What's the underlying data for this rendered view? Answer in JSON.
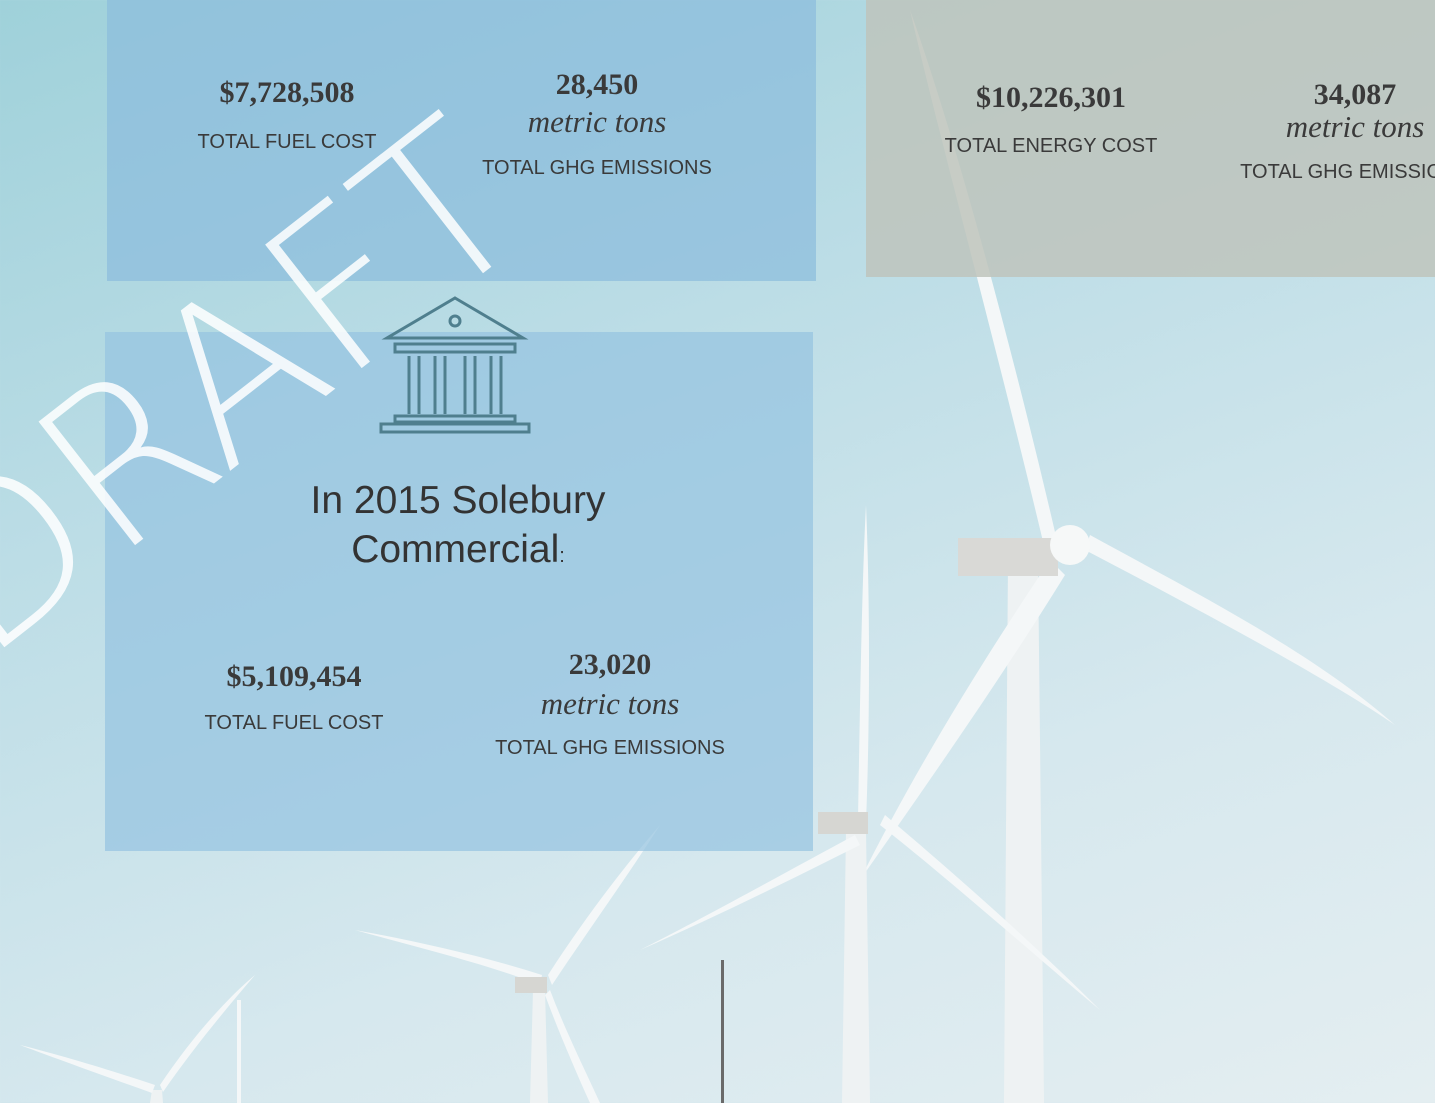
{
  "watermark": "DRAFT",
  "panels": [
    {
      "stats": [
        {
          "value": "$7,728,508",
          "label": "TOTAL FUEL COST"
        },
        {
          "value": "28,450",
          "unit": "metric tons",
          "label": "TOTAL GHG EMISSIONS"
        }
      ]
    },
    {
      "stats": [
        {
          "value": "$10,226,301",
          "label": "TOTAL ENERGY COST"
        },
        {
          "value": "34,087",
          "unit": "metric tons",
          "label": "TOTAL GHG EMISSIONS"
        }
      ]
    },
    {
      "heading": {
        "line1": "In 2015 Solebury",
        "line2": "Commercial",
        "suffix": ":"
      },
      "stats": [
        {
          "value": "$5,109,454",
          "label": "TOTAL FUEL COST"
        },
        {
          "value": "23,020",
          "unit": "metric tons",
          "label": "TOTAL GHG EMISSIONS"
        }
      ]
    }
  ]
}
